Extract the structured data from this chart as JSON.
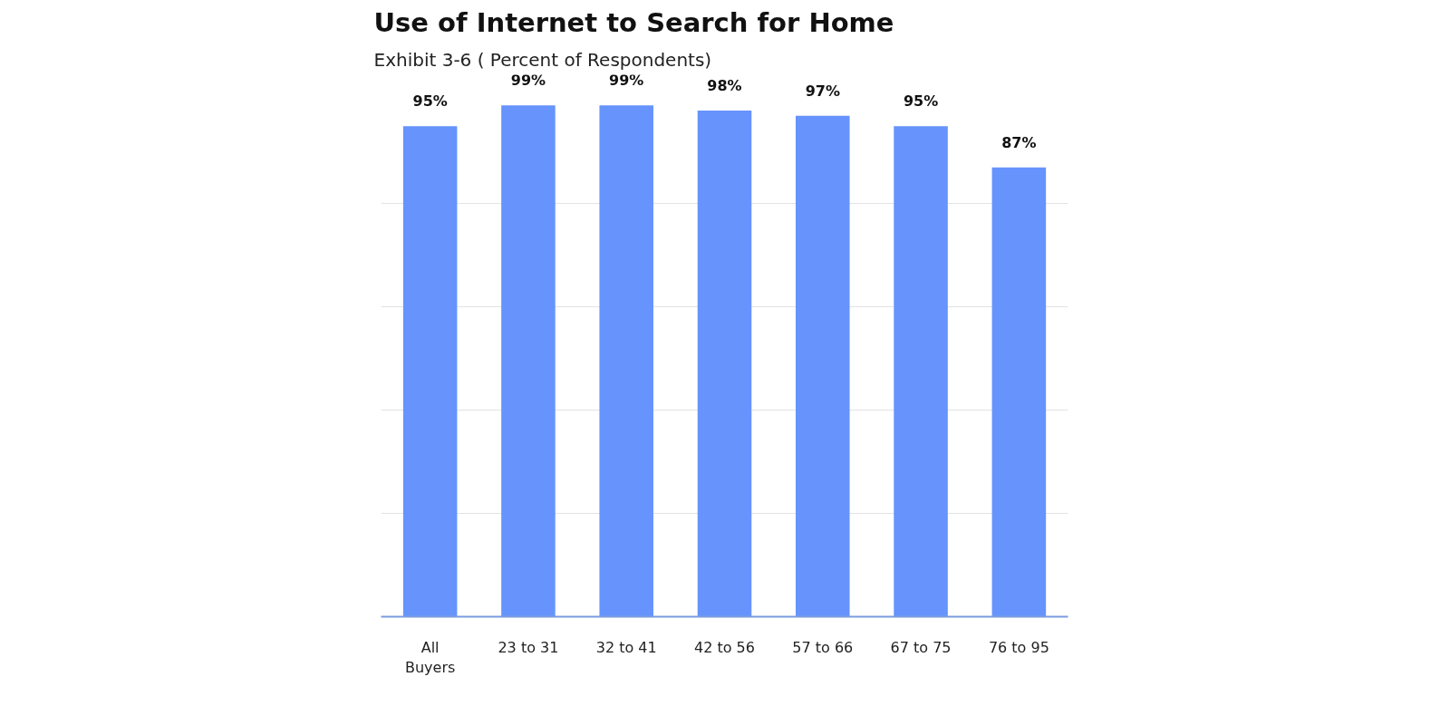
{
  "chart_data": {
    "type": "bar",
    "title": "Use of Internet to Search for Home",
    "subtitle": "Exhibit 3-6 ( Percent of Respondents)",
    "categories": [
      "All Buyers",
      "23 to 31",
      "32 to 41",
      "42 to 56",
      "57 to 66",
      "67 to 75",
      "76 to 95"
    ],
    "values": [
      95,
      99,
      99,
      98,
      97,
      95,
      87
    ],
    "value_labels": [
      "95%",
      "99%",
      "99%",
      "98%",
      "97%",
      "95%",
      "87%"
    ],
    "color": "#6694fc",
    "yticks": [
      {
        "value": 0,
        "label": null
      },
      {
        "value": 20,
        "label": null
      },
      {
        "value": 40,
        "label": null
      },
      {
        "value": 60,
        "label": null
      },
      {
        "value": 80,
        "label": null
      }
    ],
    "grid": "y",
    "tick_labels": "x"
  }
}
